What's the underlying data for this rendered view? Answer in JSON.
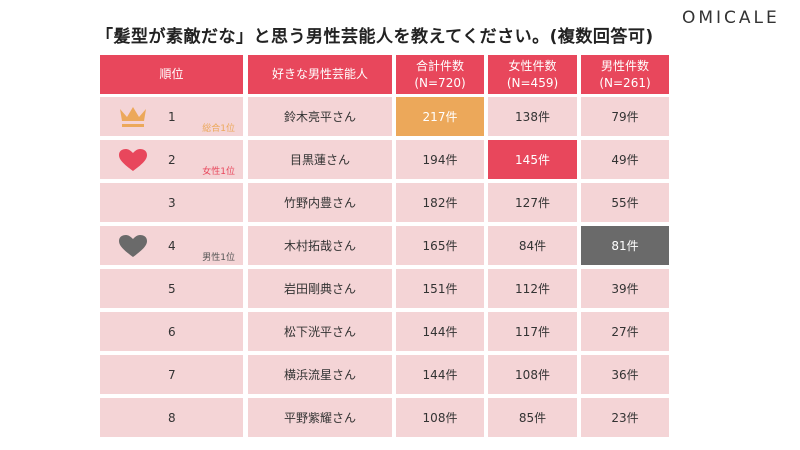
{
  "title": "「髪型が素敵だな」と思う男性芸能人を教えてください。(複数回答可)",
  "logo": "OMICALE",
  "colors": {
    "header": "#e8475c",
    "row": "#f4d4d6",
    "total_top": "#eca85a",
    "female_top": "#e8475c",
    "male_top": "#6a6a6a"
  },
  "headers": [
    "順位",
    "好きな男性芸能人",
    "合計件数\n(N=720)",
    "女性件数\n(N=459)",
    "男性件数\n(N=261)"
  ],
  "rows": [
    {
      "rank": "1",
      "name": "鈴木亮平さん",
      "total": "217件",
      "female": "138件",
      "male": "79件",
      "badge": "総合1位",
      "icon": "crown-icon",
      "highlight": "total"
    },
    {
      "rank": "2",
      "name": "目黒蓮さん",
      "total": "194件",
      "female": "145件",
      "male": "49件",
      "badge": "女性1位",
      "icon": "heart-icon",
      "highlight": "female"
    },
    {
      "rank": "3",
      "name": "竹野内豊さん",
      "total": "182件",
      "female": "127件",
      "male": "55件"
    },
    {
      "rank": "4",
      "name": "木村拓哉さん",
      "total": "165件",
      "female": "84件",
      "male": "81件",
      "badge": "男性1位",
      "icon": "heart-icon",
      "highlight": "male"
    },
    {
      "rank": "5",
      "name": "岩田剛典さん",
      "total": "151件",
      "female": "112件",
      "male": "39件"
    },
    {
      "rank": "6",
      "name": "松下洸平さん",
      "total": "144件",
      "female": "117件",
      "male": "27件"
    },
    {
      "rank": "7",
      "name": "横浜流星さん",
      "total": "144件",
      "female": "108件",
      "male": "36件"
    },
    {
      "rank": "8",
      "name": "平野紫耀さん",
      "total": "108件",
      "female": "85件",
      "male": "23件"
    }
  ]
}
